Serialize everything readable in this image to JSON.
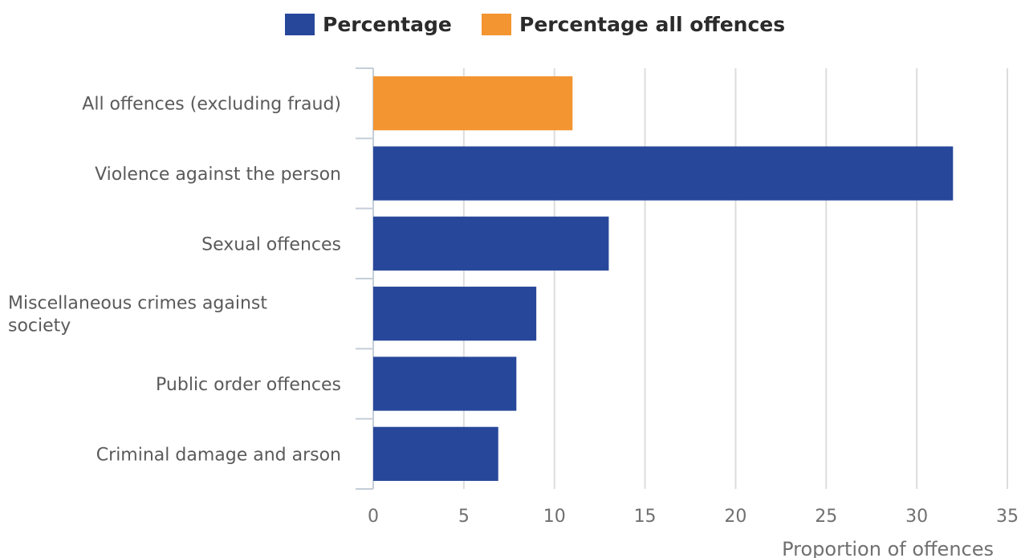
{
  "chart_data": {
    "type": "bar",
    "orientation": "horizontal",
    "title": "",
    "xlabel": "Proportion of offences",
    "ylabel": "",
    "xlim": [
      0,
      35
    ],
    "xticks": [
      0,
      5,
      10,
      15,
      20,
      25,
      30,
      35
    ],
    "grid": true,
    "legend_position": "top",
    "series": [
      {
        "name": "Percentage",
        "color": "#27479a"
      },
      {
        "name": "Percentage all offences",
        "color": "#f39530"
      }
    ],
    "categories": [
      {
        "label": [
          "All offences (excluding fraud)"
        ],
        "value": 11,
        "series": 1
      },
      {
        "label": [
          "Violence against the person"
        ],
        "value": 32,
        "series": 0
      },
      {
        "label": [
          "Sexual offences"
        ],
        "value": 13,
        "series": 0
      },
      {
        "label": [
          "Miscellaneous crimes against",
          "society"
        ],
        "value": 9,
        "series": 0
      },
      {
        "label": [
          "Public order offences"
        ],
        "value": 7.9,
        "series": 0
      },
      {
        "label": [
          "Criminal damage and arson"
        ],
        "value": 6.9,
        "series": 0
      }
    ]
  }
}
